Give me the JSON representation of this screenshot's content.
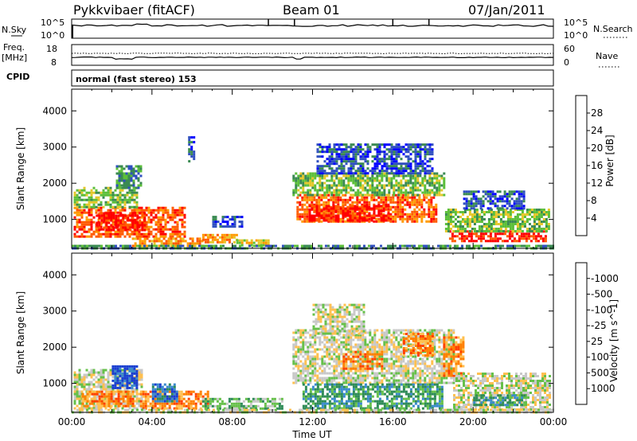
{
  "header": {
    "station": "Pykkvibaer (fitACF)",
    "beam": "Beam 01",
    "date": "07/Jan/2011"
  },
  "top_panels": {
    "nsky": {
      "label": "N.Sky",
      "ticks": [
        "10^5",
        "10^0"
      ]
    },
    "nsearch": {
      "label": "N.Search",
      "ticks": [
        "10^5",
        "10^0"
      ]
    },
    "freq": {
      "label_line1": "Freq.",
      "label_line2": "[MHz]",
      "ticks": [
        "18",
        "8"
      ]
    },
    "nave": {
      "label": "Nave",
      "ticks": [
        "60",
        "0"
      ]
    },
    "cpid": {
      "label": "CPID",
      "value": "normal (fast stereo) 153"
    }
  },
  "chart_data": [
    {
      "type": "heatmap",
      "name": "power",
      "xlabel": "",
      "ylabel": "Slant Range [km]",
      "yticks": [
        1000,
        2000,
        3000,
        4000
      ],
      "ylim": [
        200,
        4600
      ],
      "xlim_hours": [
        0,
        24
      ],
      "colorbar": {
        "label": "Power [dB]",
        "ticks": [
          4,
          8,
          12,
          16,
          20,
          24,
          28
        ],
        "colors": [
          "#0000ff",
          "#2f4fc0",
          "#3a8a52",
          "#5cbf3a",
          "#e5c72a",
          "#ff9a00",
          "#ff5a00",
          "#ff0000"
        ]
      },
      "regions": [
        {
          "t0": 0.1,
          "t1": 5.6,
          "r0": 500,
          "r1": 1350,
          "level": 6
        },
        {
          "t0": 1.2,
          "t1": 3.6,
          "r0": 700,
          "r1": 1200,
          "level": 7
        },
        {
          "t0": 0.1,
          "t1": 3.2,
          "r0": 1350,
          "r1": 1900,
          "level": 3
        },
        {
          "t0": 2.2,
          "t1": 3.4,
          "r0": 1900,
          "r1": 2500,
          "level": 2
        },
        {
          "t0": 3.0,
          "t1": 6.5,
          "r0": 300,
          "r1": 500,
          "level": 5
        },
        {
          "t0": 6.5,
          "t1": 8.2,
          "r0": 400,
          "r1": 600,
          "level": 5
        },
        {
          "t0": 8.2,
          "t1": 9.8,
          "r0": 300,
          "r1": 450,
          "level": 4
        },
        {
          "t0": 7.0,
          "t1": 8.5,
          "r0": 800,
          "r1": 1100,
          "level": 1
        },
        {
          "t0": 5.8,
          "t1": 6.1,
          "r0": 2600,
          "r1": 3300,
          "level": 1
        },
        {
          "t0": 11.2,
          "t1": 18.2,
          "r0": 950,
          "r1": 1700,
          "level": 6
        },
        {
          "t0": 11.8,
          "t1": 15.8,
          "r0": 1000,
          "r1": 1400,
          "level": 7
        },
        {
          "t0": 11.0,
          "t1": 18.5,
          "r0": 1700,
          "r1": 2300,
          "level": 3
        },
        {
          "t0": 12.2,
          "t1": 18.0,
          "r0": 2300,
          "r1": 3100,
          "level": 1
        },
        {
          "t0": 18.8,
          "t1": 23.6,
          "r0": 400,
          "r1": 700,
          "level": 7
        },
        {
          "t0": 18.6,
          "t1": 23.8,
          "r0": 700,
          "r1": 1300,
          "level": 3
        },
        {
          "t0": 19.5,
          "t1": 22.5,
          "r0": 1300,
          "r1": 1800,
          "level": 1
        },
        {
          "t0": 0.0,
          "t1": 24.0,
          "r0": 200,
          "r1": 300,
          "level": 2
        }
      ]
    },
    {
      "type": "heatmap",
      "name": "velocity",
      "xlabel": "Time UT",
      "ylabel": "Slant Range [km]",
      "yticks": [
        1000,
        2000,
        3000,
        4000
      ],
      "ylim": [
        200,
        4600
      ],
      "xlim_hours": [
        0,
        24
      ],
      "xticks": [
        "00:00",
        "04:00",
        "08:00",
        "12:00",
        "16:00",
        "20:00",
        "00:00"
      ],
      "colorbar": {
        "label": "Velocity [m s^-1]",
        "ticks": [
          "1000",
          "500",
          "100",
          "25",
          "-25",
          "-100",
          "-500",
          "-1000"
        ],
        "colors": [
          "#1a3fd0",
          "#3a8acd",
          "#2e8b57",
          "#66c04a",
          "#c8c8c8",
          "#ffc050",
          "#ff8000",
          "#ff4000",
          "#ff0000"
        ]
      },
      "regions": [
        {
          "t0": 0.1,
          "t1": 3.5,
          "r0": 300,
          "r1": 1400,
          "level": 4
        },
        {
          "t0": 0.5,
          "t1": 3.0,
          "r0": 400,
          "r1": 800,
          "level": 6
        },
        {
          "t0": 3.4,
          "t1": 6.8,
          "r0": 300,
          "r1": 800,
          "level": 6
        },
        {
          "t0": 2.0,
          "t1": 3.2,
          "r0": 900,
          "r1": 1500,
          "level": 0
        },
        {
          "t0": 4.0,
          "t1": 5.2,
          "r0": 500,
          "r1": 1000,
          "level": 1
        },
        {
          "t0": 6.5,
          "t1": 10.5,
          "r0": 300,
          "r1": 600,
          "level": 3
        },
        {
          "t0": 11.0,
          "t1": 19.0,
          "r0": 1000,
          "r1": 2500,
          "level": 4
        },
        {
          "t0": 13.5,
          "t1": 15.5,
          "r0": 1400,
          "r1": 1900,
          "level": 6
        },
        {
          "t0": 12.0,
          "t1": 14.5,
          "r0": 2400,
          "r1": 3200,
          "level": 4
        },
        {
          "t0": 16.5,
          "t1": 18.0,
          "r0": 1800,
          "r1": 2400,
          "level": 6
        },
        {
          "t0": 11.5,
          "t1": 18.5,
          "r0": 300,
          "r1": 1000,
          "level": 2
        },
        {
          "t0": 18.5,
          "t1": 19.5,
          "r0": 1200,
          "r1": 2300,
          "level": 6
        },
        {
          "t0": 19.0,
          "t1": 23.8,
          "r0": 300,
          "r1": 1300,
          "level": 4
        },
        {
          "t0": 20.0,
          "t1": 22.5,
          "r0": 400,
          "r1": 700,
          "level": 2
        },
        {
          "t0": 0.0,
          "t1": 24.0,
          "r0": 200,
          "r1": 300,
          "level": 4
        }
      ]
    }
  ]
}
